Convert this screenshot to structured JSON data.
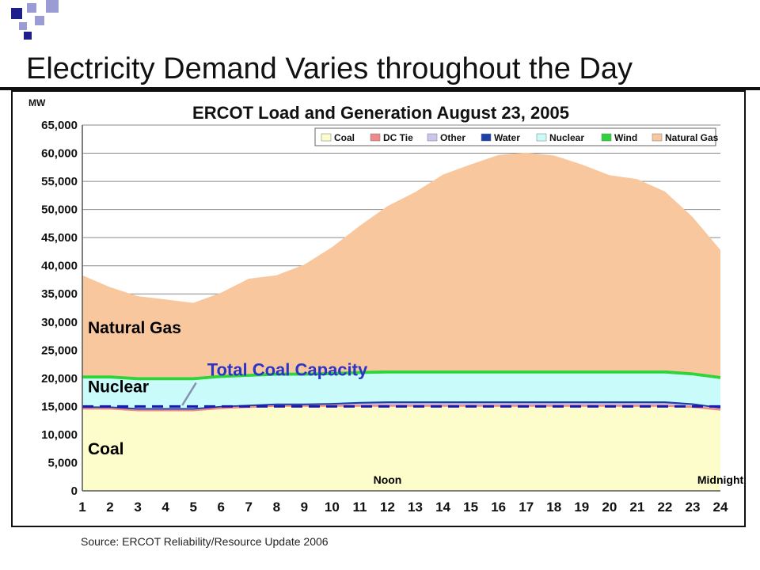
{
  "slide": {
    "title": "Electricity Demand Varies throughout the Day",
    "source": "Source: ERCOT Reliability/Resource Update 2006"
  },
  "colors": {
    "coal": "#fdfccb",
    "dc_tie": "#ef8a8a",
    "other": "#c8c6ee",
    "water": "#1f3fa8",
    "nuclear": "#c9fbfb",
    "wind": "#2fd43a",
    "natural_gas": "#f9c79e",
    "coal_capacity_line": "#1a1ab0",
    "annotation_text": "#2a35c8",
    "deco_blue": "#1f1f8c",
    "deco_light": "#9c9cd4"
  },
  "chart_data": {
    "type": "area",
    "title": "ERCOT Load and Generation August 23, 2005",
    "ylabel": "MW",
    "xlabel": "",
    "ylim": [
      0,
      65000
    ],
    "yticks": [
      0,
      5000,
      10000,
      15000,
      20000,
      25000,
      30000,
      35000,
      40000,
      45000,
      50000,
      55000,
      60000,
      65000
    ],
    "ytick_labels": [
      "0",
      "5,000",
      "10,000",
      "15,000",
      "20,000",
      "25,000",
      "30,000",
      "35,000",
      "40,000",
      "45,000",
      "50,000",
      "55,000",
      "60,000",
      "65,000"
    ],
    "x": [
      1,
      2,
      3,
      4,
      5,
      6,
      7,
      8,
      9,
      10,
      11,
      12,
      13,
      14,
      15,
      16,
      17,
      18,
      19,
      20,
      21,
      22,
      23,
      24
    ],
    "x_labels": [
      "1",
      "2",
      "3",
      "4",
      "5",
      "6",
      "7",
      "8",
      "9",
      "10",
      "11",
      "12",
      "13",
      "14",
      "15",
      "16",
      "17",
      "18",
      "19",
      "20",
      "21",
      "22",
      "23",
      "24"
    ],
    "legend_position": "top-right",
    "grid": "horizontal",
    "series": [
      {
        "name": "Coal",
        "color_key": "coal",
        "values": [
          14500,
          14500,
          14200,
          14200,
          14200,
          14600,
          14800,
          15000,
          15000,
          15000,
          15000,
          15000,
          15000,
          15000,
          15000,
          15000,
          15000,
          15000,
          15000,
          15000,
          15000,
          15000,
          14800,
          14300
        ]
      },
      {
        "name": "DC Tie",
        "color_key": "dc_tie",
        "values": [
          300,
          300,
          300,
          300,
          300,
          300,
          300,
          300,
          300,
          300,
          300,
          300,
          300,
          300,
          300,
          300,
          300,
          300,
          300,
          300,
          300,
          300,
          300,
          300
        ]
      },
      {
        "name": "Other",
        "color_key": "other",
        "values": [
          100,
          100,
          100,
          100,
          100,
          100,
          100,
          100,
          100,
          200,
          300,
          400,
          400,
          400,
          400,
          400,
          400,
          400,
          400,
          400,
          400,
          400,
          300,
          200
        ]
      },
      {
        "name": "Water",
        "color_key": "water",
        "values": [
          100,
          100,
          100,
          100,
          100,
          100,
          100,
          100,
          100,
          100,
          200,
          200,
          200,
          200,
          200,
          200,
          200,
          200,
          200,
          200,
          200,
          200,
          150,
          100
        ]
      },
      {
        "name": "Nuclear",
        "color_key": "nuclear",
        "values": [
          5000,
          5000,
          5000,
          5000,
          5000,
          5000,
          5000,
          5000,
          5000,
          5000,
          5000,
          5000,
          5000,
          5000,
          5000,
          5000,
          5000,
          5000,
          5000,
          5000,
          5000,
          5000,
          5000,
          5000
        ]
      },
      {
        "name": "Wind",
        "color_key": "wind",
        "values": [
          500,
          500,
          500,
          500,
          500,
          500,
          500,
          500,
          500,
          500,
          500,
          500,
          500,
          500,
          500,
          500,
          500,
          500,
          500,
          500,
          500,
          500,
          500,
          500
        ]
      },
      {
        "name": "Natural Gas",
        "color_key": "natural_gas",
        "values": [
          17800,
          15700,
          14400,
          13800,
          13200,
          14600,
          16900,
          17300,
          19200,
          22200,
          25800,
          29200,
          31700,
          34800,
          36600,
          38300,
          38700,
          38200,
          36600,
          34700,
          34000,
          31800,
          27600,
          22400
        ]
      }
    ],
    "reference_line": {
      "name": "Total Coal Capacity",
      "value": 15000,
      "style": "dashed"
    },
    "annotations": [
      {
        "text": "Natural Gas",
        "x": 1.2,
        "y": 28000,
        "color": "#000000"
      },
      {
        "text": "Nuclear",
        "x": 1.2,
        "y": 17500,
        "color": "#000000"
      },
      {
        "text": "Coal",
        "x": 1.2,
        "y": 6500,
        "color": "#000000"
      },
      {
        "text": "Total Coal Capacity",
        "x": 5.5,
        "y": 20500,
        "color": "#2a35c8"
      },
      {
        "text": "Noon",
        "x": 12,
        "y": 1300,
        "color": "#000000"
      },
      {
        "text": "Midnight",
        "x": 24,
        "y": 1300,
        "color": "#000000"
      }
    ]
  }
}
